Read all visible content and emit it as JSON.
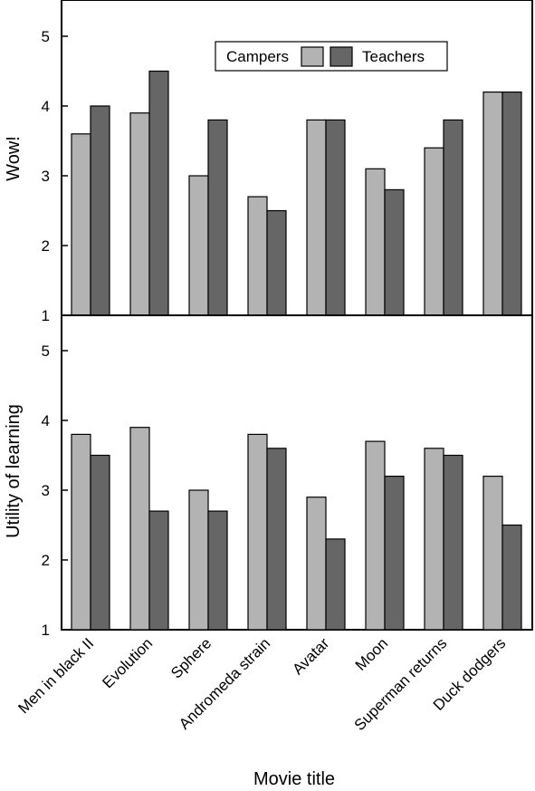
{
  "chart_data": [
    {
      "type": "bar",
      "title": "",
      "ylabel": "Wow!",
      "xlabel": "",
      "ylim": [
        1,
        5.4
      ],
      "yticks": [
        1,
        2,
        3,
        4,
        5
      ],
      "categories": [
        "Men in black II",
        "Evolution",
        "Sphere",
        "Andromeda strain",
        "Avatar",
        "Moon",
        "Superman returns",
        "Duck dodgers"
      ],
      "legend_position": "top-right",
      "series": [
        {
          "name": "Campers",
          "color": "#b3b3b3",
          "values": [
            3.6,
            3.9,
            3.0,
            2.7,
            3.8,
            3.1,
            3.4,
            4.2
          ]
        },
        {
          "name": "Teachers",
          "color": "#666666",
          "values": [
            4.0,
            4.5,
            3.8,
            2.5,
            3.8,
            2.8,
            3.8,
            4.2
          ]
        }
      ]
    },
    {
      "type": "bar",
      "title": "",
      "ylabel": "Utility of learning",
      "xlabel": "Movie title",
      "ylim": [
        1,
        5.4
      ],
      "yticks": [
        1,
        2,
        3,
        4,
        5
      ],
      "categories": [
        "Men in black II",
        "Evolution",
        "Sphere",
        "Andromeda strain",
        "Avatar",
        "Moon",
        "Superman returns",
        "Duck dodgers"
      ],
      "series": [
        {
          "name": "Campers",
          "color": "#b3b3b3",
          "values": [
            3.8,
            3.9,
            3.0,
            3.8,
            2.9,
            3.7,
            3.6,
            3.2
          ]
        },
        {
          "name": "Teachers",
          "color": "#666666",
          "values": [
            3.5,
            2.7,
            2.7,
            3.6,
            2.3,
            3.2,
            3.5,
            2.5
          ]
        }
      ]
    }
  ]
}
